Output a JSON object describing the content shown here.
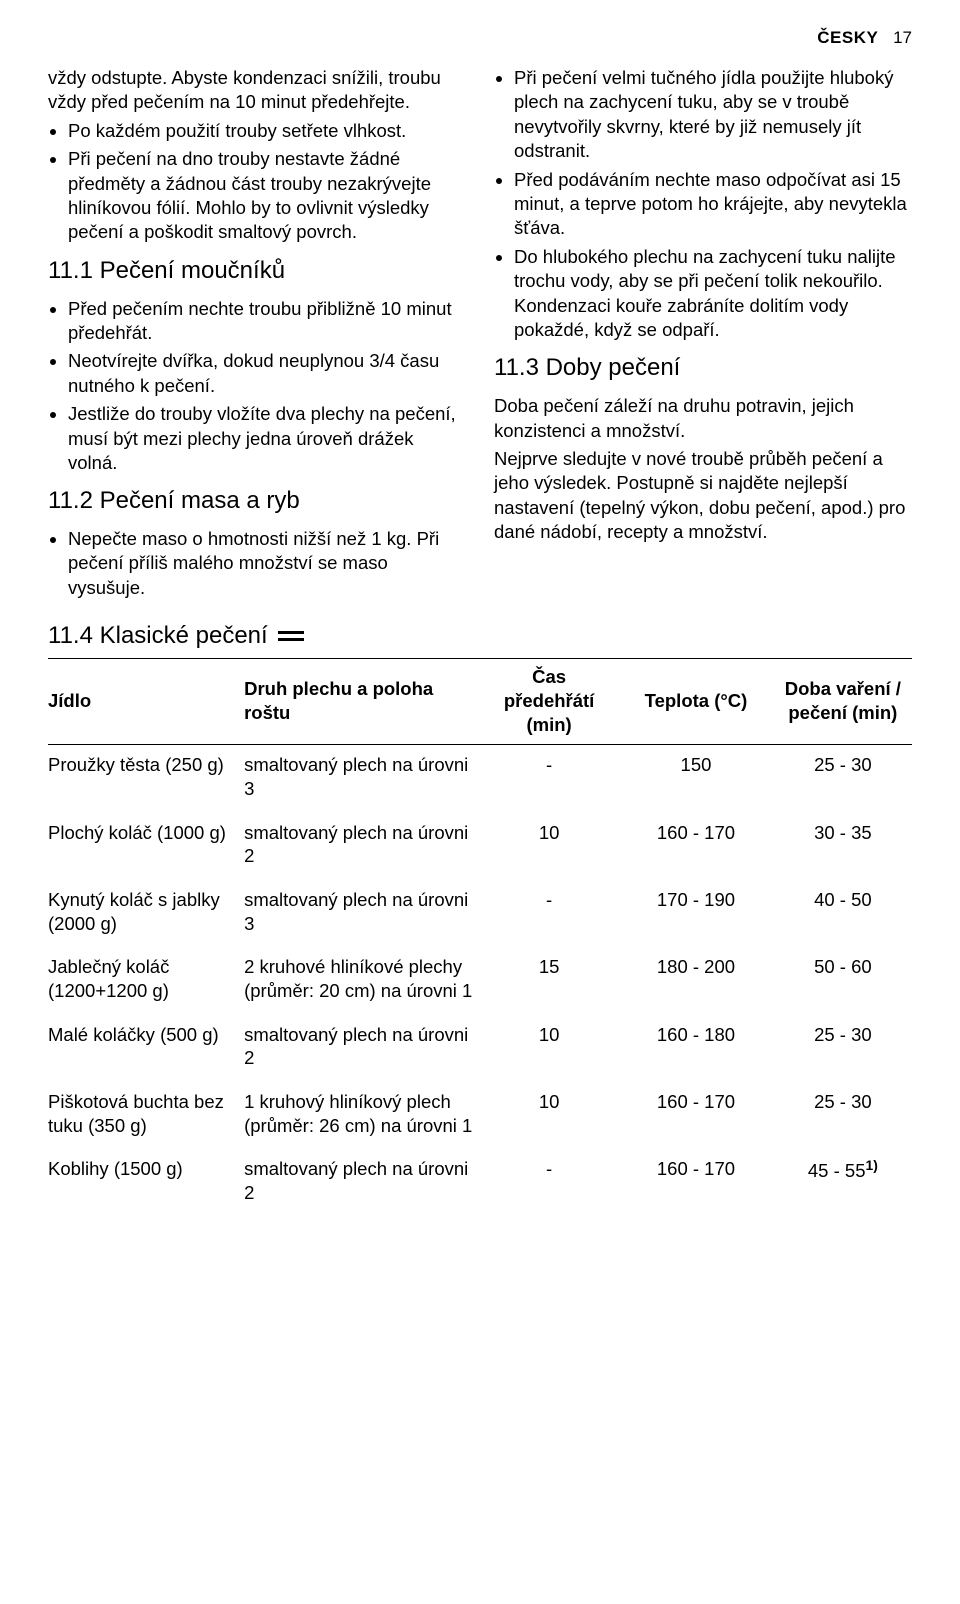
{
  "header": {
    "lang": "ČESKY",
    "page": "17"
  },
  "leftCol": {
    "intro1": "vždy odstupte. Abyste kondenzaci snížili, troubu vždy před pečením na 10 minut předehřejte.",
    "intro_bullets": [
      "Po každém použití trouby setřete vlhkost.",
      "Při pečení na dno trouby nestavte žádné předměty a žádnou část trouby nezakrývejte hliníkovou fólií. Mohlo by to ovlivnit výsledky pečení a poškodit smaltový povrch."
    ],
    "sec111_title": "11.1 Pečení moučníků",
    "sec111_bullets": [
      "Před pečením nechte troubu přibližně 10 minut předehřát.",
      "Neotvírejte dvířka, dokud neuplynou 3/4 času nutného k pečení.",
      "Jestliže do trouby vložíte dva plechy na pečení, musí být mezi plechy jedna úroveň drážek volná."
    ],
    "sec112_title": "11.2 Pečení masa a ryb",
    "sec112_bullets": [
      "Nepečte maso o hmotnosti nižší než 1 kg. Při pečení příliš malého množství se maso vysušuje."
    ]
  },
  "rightCol": {
    "top_bullets": [
      "Při pečení velmi tučného jídla použijte hluboký plech na zachycení tuku, aby se v troubě nevytvořily skvrny, které by již nemusely jít odstranit.",
      "Před podáváním nechte maso odpočívat asi 15 minut, a teprve potom ho krájejte, aby nevytekla šťáva.",
      "Do hlubokého plechu na zachycení tuku nalijte trochu vody, aby se při pečení tolik nekouřilo. Kondenzaci kouře zabráníte dolitím vody pokaždé, když se odpaří."
    ],
    "sec113_title": "11.3 Doby pečení",
    "sec113_p1": "Doba pečení záleží na druhu potravin, jejich konzistenci a množství.",
    "sec113_p2": "Nejprve sledujte v nové troubě průběh pečení a jeho výsledek. Postupně si najděte nejlepší nastavení (tepelný výkon, dobu pečení, apod.) pro dané nádobí, recepty a množství."
  },
  "sec114_title": "11.4 Klasické pečení",
  "table": {
    "headers": {
      "food": "Jídlo",
      "tray": "Druh plechu a poloha roštu",
      "preheat": "Čas předehřátí (min)",
      "temp": "Teplota (°C)",
      "cook": "Doba vaření / pečení (min)"
    },
    "rows": [
      {
        "food": "Proužky těsta (250 g)",
        "tray": "smaltovaný plech na úrovni 3",
        "preheat": "-",
        "temp": "150",
        "cook": "25 - 30"
      },
      {
        "food": "Plochý koláč (1000 g)",
        "tray": "smaltovaný plech na úrovni 2",
        "preheat": "10",
        "temp": "160 - 170",
        "cook": "30 - 35"
      },
      {
        "food": "Kynutý koláč s jablky (2000 g)",
        "tray": "smaltovaný plech na úrovni 3",
        "preheat": "-",
        "temp": "170 - 190",
        "cook": "40 - 50"
      },
      {
        "food": "Jablečný koláč (1200+1200 g)",
        "tray": "2 kruhové hliníkové plechy (průměr: 20 cm) na úrovni 1",
        "preheat": "15",
        "temp": "180 - 200",
        "cook": "50 - 60"
      },
      {
        "food": "Malé koláčky (500 g)",
        "tray": "smaltovaný plech na úrovni 2",
        "preheat": "10",
        "temp": "160 - 180",
        "cook": "25 - 30"
      },
      {
        "food": "Piškotová buchta bez tuku (350 g)",
        "tray": "1 kruhový hliníkový plech (průměr: 26 cm) na úrovni 1",
        "preheat": "10",
        "temp": "160 - 170",
        "cook": "25 - 30"
      },
      {
        "food": "Koblihy (1500 g)",
        "tray": "smaltovaný plech na úrovni 2",
        "preheat": "-",
        "temp": "160 - 170",
        "cook": "45 - 55",
        "sup": "1)"
      }
    ]
  }
}
